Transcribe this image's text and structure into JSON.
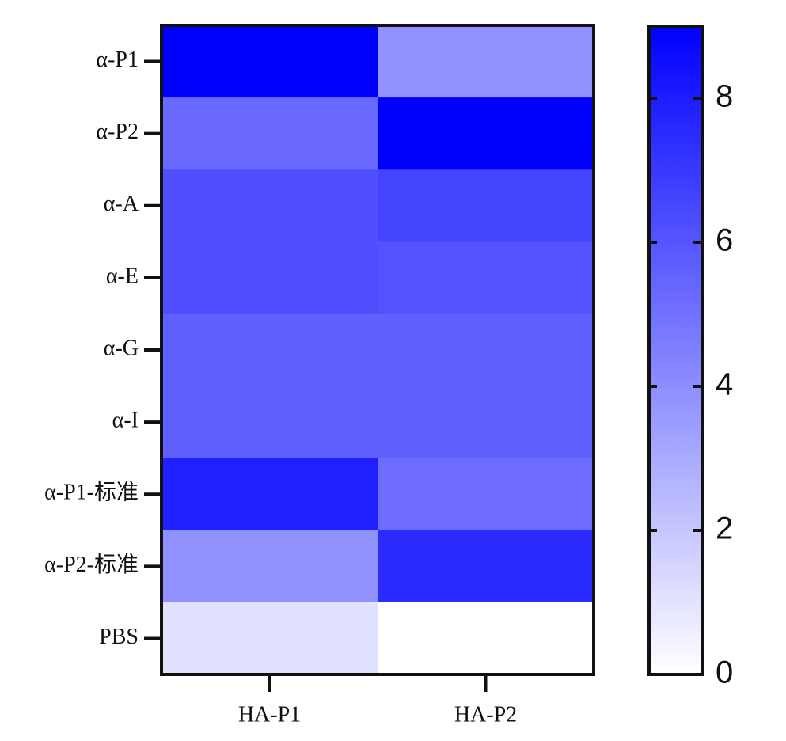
{
  "chart_data": {
    "type": "heatmap",
    "x_categories": [
      "HA-P1",
      "HA-P2"
    ],
    "y_categories": [
      "α-P1",
      "α-P2",
      "α-A",
      "α-E",
      "α-G",
      "α-I",
      "α-P1-标准",
      "α-P2-标准",
      "PBS"
    ],
    "values": [
      [
        9.0,
        3.9
      ],
      [
        5.3,
        9.0
      ],
      [
        6.2,
        6.6
      ],
      [
        6.2,
        6.1
      ],
      [
        5.6,
        5.6
      ],
      [
        5.6,
        5.6
      ],
      [
        7.9,
        5.2
      ],
      [
        3.9,
        7.5
      ],
      [
        1.1,
        0
      ]
    ],
    "colormap": [
      "#ffffff",
      "#0000ff"
    ],
    "zlim": [
      0,
      9
    ],
    "zticks": [
      0,
      2,
      4,
      6,
      8
    ]
  }
}
